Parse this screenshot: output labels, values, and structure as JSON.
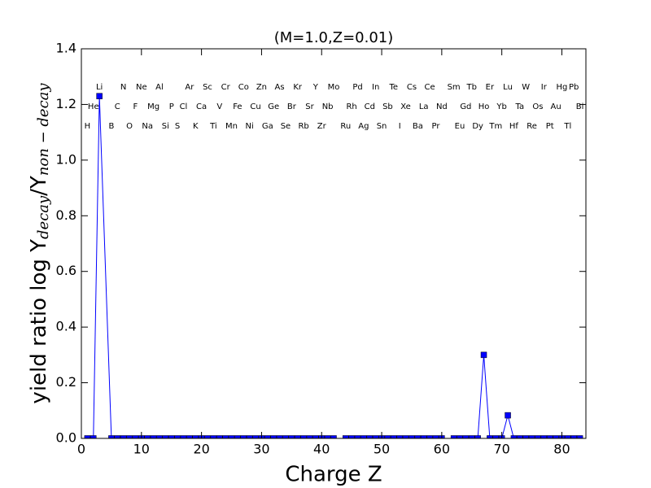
{
  "chart_data": {
    "type": "line",
    "title": "(M=1.0,Z=0.01)",
    "xlabel": "Charge Z",
    "ylabel": [
      "yield ratio log Y",
      "decay",
      "/Y",
      "non − decay"
    ],
    "x": [
      1,
      2,
      3,
      5,
      6,
      7,
      8,
      9,
      10,
      11,
      12,
      13,
      14,
      15,
      16,
      17,
      18,
      19,
      20,
      21,
      22,
      23,
      24,
      25,
      26,
      27,
      28,
      29,
      30,
      31,
      32,
      33,
      34,
      35,
      36,
      37,
      38,
      39,
      40,
      41,
      42,
      43,
      44,
      45,
      46,
      47,
      48,
      49,
      50,
      51,
      52,
      53,
      54,
      55,
      56,
      57,
      58,
      59,
      60,
      61,
      62,
      63,
      64,
      65,
      66,
      67,
      68,
      69,
      70,
      71,
      72,
      73,
      74,
      75,
      76,
      77,
      78,
      79,
      80,
      81,
      82,
      83
    ],
    "values": [
      0,
      0,
      1.23,
      0,
      0,
      0,
      0,
      0,
      0,
      0,
      0,
      0,
      0,
      0,
      0,
      0,
      0,
      0,
      0,
      0,
      0,
      0,
      0,
      0,
      0,
      0,
      0,
      0,
      0,
      0,
      0,
      0,
      0,
      0,
      0,
      0,
      0,
      0,
      0,
      0,
      0,
      null,
      0,
      0,
      0,
      0,
      0,
      0,
      0,
      0,
      0,
      0,
      0,
      0,
      0,
      0,
      0,
      0,
      0,
      null,
      0,
      0,
      0,
      0,
      0,
      0.3,
      0,
      0,
      0,
      0.083,
      0,
      0,
      0,
      0,
      0,
      0,
      0,
      0,
      0,
      0,
      0,
      0
    ],
    "color": "#0000ff",
    "marker": "square",
    "xlim": [
      0,
      84
    ],
    "xticks": [
      0,
      10,
      20,
      30,
      40,
      50,
      60,
      70,
      80
    ],
    "ylim": [
      0,
      1.4
    ],
    "yticks": [
      {
        "value": 0,
        "label": "0.0"
      },
      0.2,
      0.4,
      0.6,
      0.8,
      {
        "value": 1,
        "label": "1.0"
      },
      1.2,
      1.4
    ],
    "grid": false,
    "annotation_rows": [
      [
        {
          "text": "Li",
          "x": 3
        },
        {
          "text": "N",
          "x": 7
        },
        {
          "text": "Ne",
          "x": 10
        },
        {
          "text": "Al",
          "x": 13
        },
        {
          "text": "Ar",
          "x": 18
        },
        {
          "text": "Sc",
          "x": 21
        },
        {
          "text": "Cr",
          "x": 24
        },
        {
          "text": "Co",
          "x": 27
        },
        {
          "text": "Zn",
          "x": 30
        },
        {
          "text": "As",
          "x": 33
        },
        {
          "text": "Kr",
          "x": 36
        },
        {
          "text": "Y",
          "x": 39
        },
        {
          "text": "Mo",
          "x": 42
        },
        {
          "text": "Pd",
          "x": 46
        },
        {
          "text": "In",
          "x": 49
        },
        {
          "text": "Te",
          "x": 52
        },
        {
          "text": "Cs",
          "x": 55
        },
        {
          "text": "Ce",
          "x": 58
        },
        {
          "text": "Sm",
          "x": 62
        },
        {
          "text": "Tb",
          "x": 65
        },
        {
          "text": "Er",
          "x": 68
        },
        {
          "text": "Lu",
          "x": 71
        },
        {
          "text": "W",
          "x": 74
        },
        {
          "text": "Ir",
          "x": 77
        },
        {
          "text": "Hg",
          "x": 80
        },
        {
          "text": "Pb",
          "x": 82
        }
      ],
      [
        {
          "text": "He",
          "x": 2
        },
        {
          "text": "C",
          "x": 6
        },
        {
          "text": "F",
          "x": 9
        },
        {
          "text": "Mg",
          "x": 12
        },
        {
          "text": "P",
          "x": 15
        },
        {
          "text": "Cl",
          "x": 17
        },
        {
          "text": "Ca",
          "x": 20
        },
        {
          "text": "V",
          "x": 23
        },
        {
          "text": "Fe",
          "x": 26
        },
        {
          "text": "Cu",
          "x": 29
        },
        {
          "text": "Ge",
          "x": 32
        },
        {
          "text": "Br",
          "x": 35
        },
        {
          "text": "Sr",
          "x": 38
        },
        {
          "text": "Nb",
          "x": 41
        },
        {
          "text": "Rh",
          "x": 45
        },
        {
          "text": "Cd",
          "x": 48
        },
        {
          "text": "Sb",
          "x": 51
        },
        {
          "text": "Xe",
          "x": 54
        },
        {
          "text": "La",
          "x": 57
        },
        {
          "text": "Nd",
          "x": 60
        },
        {
          "text": "Gd",
          "x": 64
        },
        {
          "text": "Ho",
          "x": 67
        },
        {
          "text": "Yb",
          "x": 70
        },
        {
          "text": "Ta",
          "x": 73
        },
        {
          "text": "Os",
          "x": 76
        },
        {
          "text": "Au",
          "x": 79
        },
        {
          "text": "Bi",
          "x": 83
        }
      ],
      [
        {
          "text": "H",
          "x": 1
        },
        {
          "text": "B",
          "x": 5
        },
        {
          "text": "O",
          "x": 8
        },
        {
          "text": "Na",
          "x": 11
        },
        {
          "text": "Si",
          "x": 14
        },
        {
          "text": "S",
          "x": 16
        },
        {
          "text": "K",
          "x": 19
        },
        {
          "text": "Ti",
          "x": 22
        },
        {
          "text": "Mn",
          "x": 25
        },
        {
          "text": "Ni",
          "x": 28
        },
        {
          "text": "Ga",
          "x": 31
        },
        {
          "text": "Se",
          "x": 34
        },
        {
          "text": "Rb",
          "x": 37
        },
        {
          "text": "Zr",
          "x": 40
        },
        {
          "text": "Ru",
          "x": 44
        },
        {
          "text": "Ag",
          "x": 47
        },
        {
          "text": "Sn",
          "x": 50
        },
        {
          "text": "I",
          "x": 53
        },
        {
          "text": "Ba",
          "x": 56
        },
        {
          "text": "Pr",
          "x": 59
        },
        {
          "text": "Eu",
          "x": 63
        },
        {
          "text": "Dy",
          "x": 66
        },
        {
          "text": "Tm",
          "x": 69
        },
        {
          "text": "Hf",
          "x": 72
        },
        {
          "text": "Re",
          "x": 75
        },
        {
          "text": "Pt",
          "x": 78
        },
        {
          "text": "Tl",
          "x": 81
        }
      ]
    ]
  }
}
